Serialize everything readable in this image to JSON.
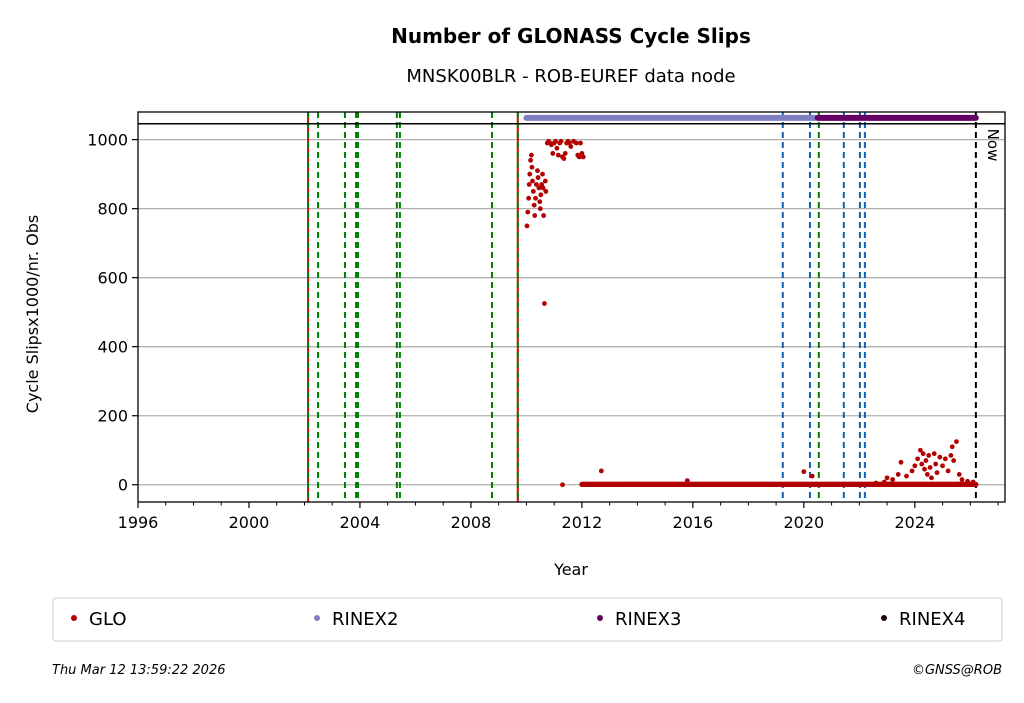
{
  "chart_data": {
    "type": "scatter",
    "title": "Number of GLONASS Cycle Slips",
    "subtitle": "MNSK00BLR - ROB-EUREF data node",
    "xlabel": "Year",
    "ylabel": "Cycle Slipsx1000/nr. Obs",
    "xlim": [
      1996,
      2027.25
    ],
    "ylim": [
      -50,
      1080
    ],
    "grid": "horizontal",
    "xticks": [
      1996,
      2000,
      2004,
      2008,
      2012,
      2016,
      2020,
      2024
    ],
    "yticks": [
      0,
      200,
      400,
      600,
      800,
      1000
    ],
    "reference_line_y": 1046,
    "now_label": "Now",
    "now_x": 2026.2,
    "event_lines": {
      "red_green": [
        2002.13,
        2009.69
      ],
      "green": [
        2002.49,
        2003.46,
        2003.86,
        2003.93,
        2005.33,
        2005.44,
        2008.76,
        2020.54
      ],
      "blue": [
        2019.24,
        2020.22,
        2021.44,
        2022.02,
        2022.2
      ]
    },
    "rinex_bars": [
      {
        "name": "RINEX2",
        "from": 2010.0,
        "to": 2020.4,
        "y": 1063,
        "color": "#8080c0"
      },
      {
        "name": "RINEX3",
        "from": 2020.5,
        "to": 2026.2,
        "y": 1063,
        "color": "#660066"
      }
    ],
    "series": [
      {
        "name": "GLO",
        "color": "#b30000",
        "points": [
          [
            2010.02,
            750
          ],
          [
            2010.05,
            790
          ],
          [
            2010.08,
            830
          ],
          [
            2010.1,
            870
          ],
          [
            2010.12,
            900
          ],
          [
            2010.15,
            940
          ],
          [
            2010.18,
            955
          ],
          [
            2010.2,
            920
          ],
          [
            2010.22,
            880
          ],
          [
            2010.25,
            850
          ],
          [
            2010.28,
            810
          ],
          [
            2010.3,
            780
          ],
          [
            2010.33,
            830
          ],
          [
            2010.36,
            870
          ],
          [
            2010.4,
            910
          ],
          [
            2010.42,
            890
          ],
          [
            2010.45,
            860
          ],
          [
            2010.48,
            820
          ],
          [
            2010.5,
            800
          ],
          [
            2010.52,
            840
          ],
          [
            2010.55,
            870
          ],
          [
            2010.58,
            900
          ],
          [
            2010.6,
            860
          ],
          [
            2010.62,
            780
          ],
          [
            2010.65,
            525
          ],
          [
            2010.68,
            880
          ],
          [
            2010.7,
            850
          ],
          [
            2010.75,
            990
          ],
          [
            2010.8,
            995
          ],
          [
            2010.85,
            990
          ],
          [
            2010.9,
            985
          ],
          [
            2010.95,
            960
          ],
          [
            2011.0,
            990
          ],
          [
            2011.05,
            995
          ],
          [
            2011.1,
            975
          ],
          [
            2011.15,
            955
          ],
          [
            2011.2,
            990
          ],
          [
            2011.25,
            995
          ],
          [
            2011.3,
            950
          ],
          [
            2011.35,
            945
          ],
          [
            2011.4,
            960
          ],
          [
            2011.45,
            990
          ],
          [
            2011.5,
            995
          ],
          [
            2011.55,
            990
          ],
          [
            2011.6,
            980
          ],
          [
            2011.7,
            995
          ],
          [
            2011.8,
            990
          ],
          [
            2011.85,
            955
          ],
          [
            2011.9,
            950
          ],
          [
            2011.95,
            990
          ],
          [
            2012.0,
            960
          ],
          [
            2012.05,
            950
          ],
          [
            2011.3,
            0
          ],
          [
            2012.7,
            40
          ],
          [
            2015.8,
            12
          ],
          [
            2020.0,
            38
          ],
          [
            2020.3,
            25
          ],
          [
            2022.6,
            5
          ],
          [
            2022.9,
            8
          ],
          [
            2023.0,
            20
          ],
          [
            2023.2,
            15
          ],
          [
            2023.4,
            30
          ],
          [
            2023.5,
            65
          ],
          [
            2023.7,
            25
          ],
          [
            2023.9,
            40
          ],
          [
            2024.0,
            55
          ],
          [
            2024.1,
            75
          ],
          [
            2024.2,
            100
          ],
          [
            2024.25,
            60
          ],
          [
            2024.3,
            90
          ],
          [
            2024.35,
            45
          ],
          [
            2024.4,
            70
          ],
          [
            2024.45,
            30
          ],
          [
            2024.5,
            85
          ],
          [
            2024.55,
            50
          ],
          [
            2024.6,
            20
          ],
          [
            2024.7,
            90
          ],
          [
            2024.75,
            60
          ],
          [
            2024.8,
            35
          ],
          [
            2024.9,
            80
          ],
          [
            2025.0,
            55
          ],
          [
            2025.1,
            75
          ],
          [
            2025.2,
            40
          ],
          [
            2025.3,
            85
          ],
          [
            2025.35,
            110
          ],
          [
            2025.4,
            70
          ],
          [
            2025.5,
            125
          ],
          [
            2025.6,
            30
          ],
          [
            2025.7,
            15
          ],
          [
            2025.9,
            10
          ],
          [
            2026.1,
            8
          ]
        ],
        "baseline": {
          "from": 2012.0,
          "to": 2026.2,
          "step": 0.02,
          "value": 1
        }
      },
      {
        "name": "RINEX2",
        "color": "#8080c0"
      },
      {
        "name": "RINEX3",
        "color": "#660066"
      },
      {
        "name": "RINEX4",
        "color": "#1a0010"
      }
    ]
  },
  "footer": {
    "timestamp": "Thu Mar 12 13:59:22 2026",
    "copyright": "©GNSS@ROB"
  }
}
